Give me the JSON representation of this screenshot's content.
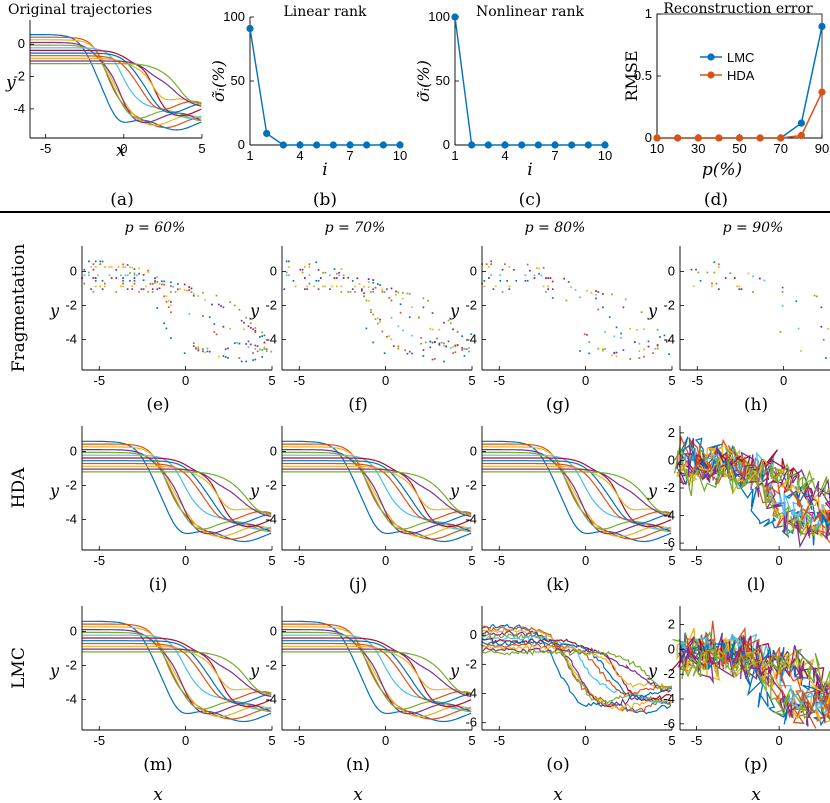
{
  "colors": {
    "blue": "#0072BD",
    "orange": "#D95319",
    "yellow": "#EDB120",
    "purple": "#7E2F8E",
    "green": "#77AC30",
    "cyan": "#4DBEEE",
    "red": "#A2142F"
  },
  "labels": {
    "x": "x",
    "y": "y",
    "i": "i",
    "p": "p(%)",
    "sigma": "σ̃ᵢ(%)",
    "rmse": "RMSE"
  },
  "row_labels": [
    "Fragmentation",
    "HDA",
    "LMC"
  ],
  "col_titles": [
    "p = 60%",
    "p = 70%",
    "p = 80%",
    "p = 90%"
  ],
  "panel_letters": [
    "(a)",
    "(b)",
    "(c)",
    "(d)",
    "(e)",
    "(f)",
    "(g)",
    "(h)",
    "(i)",
    "(j)",
    "(k)",
    "(l)",
    "(m)",
    "(n)",
    "(o)",
    "(p)"
  ],
  "chart_data": [
    {
      "type": "line",
      "title": "Original trajectories",
      "xlabel": "x",
      "ylabel": "y",
      "xlim": [
        -6,
        5
      ],
      "ylim": [
        -5.8,
        1.5
      ],
      "xticks": [
        "-5",
        "0",
        "5"
      ],
      "yticks": [
        "0",
        "-2",
        "-4"
      ],
      "series_count": 12
    },
    {
      "type": "line",
      "title": "Linear rank",
      "xlabel": "i",
      "ylabel": "σ̃ᵢ(%)",
      "xlim": [
        1,
        10
      ],
      "ylim": [
        0,
        100
      ],
      "xticks": [
        "1",
        "4",
        "7",
        "10"
      ],
      "yticks": [
        "0",
        "50",
        "100"
      ],
      "series": [
        {
          "name": "linear",
          "x": [
            1,
            2,
            3,
            4,
            5,
            6,
            7,
            8,
            9,
            10
          ],
          "values": [
            91,
            9,
            0,
            0,
            0,
            0,
            0,
            0,
            0,
            0
          ]
        }
      ]
    },
    {
      "type": "line",
      "title": "Nonlinear rank",
      "xlabel": "i",
      "ylabel": "σ̃ᵢ(%)",
      "xlim": [
        1,
        10
      ],
      "ylim": [
        0,
        100
      ],
      "xticks": [
        "1",
        "4",
        "7",
        "10"
      ],
      "yticks": [
        "0",
        "50",
        "100"
      ],
      "series": [
        {
          "name": "nonlinear",
          "x": [
            1,
            2,
            3,
            4,
            5,
            6,
            7,
            8,
            9,
            10
          ],
          "values": [
            100,
            0,
            0,
            0,
            0,
            0,
            0,
            0,
            0,
            0
          ]
        }
      ]
    },
    {
      "type": "line",
      "title": "Reconstruction error",
      "xlabel": "p(%)",
      "ylabel": "RMSE",
      "xlim": [
        10,
        90
      ],
      "ylim": [
        0,
        1
      ],
      "xticks": [
        "10",
        "30",
        "50",
        "70",
        "90"
      ],
      "yticks": [
        "0",
        "0.5",
        "1"
      ],
      "legend": "top-right",
      "series": [
        {
          "name": "LMC",
          "x": [
            10,
            20,
            30,
            40,
            50,
            60,
            70,
            80,
            90
          ],
          "values": [
            0,
            0,
            0,
            0,
            0,
            0,
            0,
            0.12,
            0.9
          ]
        },
        {
          "name": "HDA",
          "x": [
            10,
            20,
            30,
            40,
            50,
            60,
            70,
            80,
            90
          ],
          "values": [
            0,
            0,
            0,
            0,
            0,
            0,
            0,
            0.02,
            0.37
          ]
        }
      ]
    },
    {
      "type": "scatter",
      "row": "Fragmentation",
      "p": 60,
      "xlim": [
        -6,
        5
      ],
      "ylim": [
        -5.8,
        1.5
      ],
      "kept_fraction": 0.4
    },
    {
      "type": "scatter",
      "row": "Fragmentation",
      "p": 70,
      "xlim": [
        -6,
        5
      ],
      "ylim": [
        -5.8,
        1.5
      ],
      "kept_fraction": 0.3
    },
    {
      "type": "scatter",
      "row": "Fragmentation",
      "p": 80,
      "xlim": [
        -6,
        5
      ],
      "ylim": [
        -5.8,
        1.5
      ],
      "kept_fraction": 0.2
    },
    {
      "type": "scatter",
      "row": "Fragmentation",
      "p": 90,
      "xlim": [
        -6,
        5
      ],
      "ylim": [
        -5.8,
        1.5
      ],
      "kept_fraction": 0.1
    },
    {
      "type": "line",
      "row": "HDA",
      "p": 60,
      "xlim": [
        -6,
        5
      ],
      "ylim": [
        -5.8,
        1.5
      ],
      "noise": 0
    },
    {
      "type": "line",
      "row": "HDA",
      "p": 70,
      "xlim": [
        -6,
        5
      ],
      "ylim": [
        -5.8,
        1.5
      ],
      "noise": 0
    },
    {
      "type": "line",
      "row": "HDA",
      "p": 80,
      "xlim": [
        -6,
        5
      ],
      "ylim": [
        -5.8,
        1.5
      ],
      "noise": 0
    },
    {
      "type": "line",
      "row": "HDA",
      "p": 90,
      "xlim": [
        -6,
        5.5
      ],
      "ylim": [
        -6.5,
        2.5
      ],
      "noise": 1.0,
      "yticks": [
        "2",
        "0",
        "-2",
        "-4",
        "-6"
      ]
    },
    {
      "type": "line",
      "row": "LMC",
      "p": 60,
      "xlim": [
        -6,
        5
      ],
      "ylim": [
        -5.8,
        1.5
      ],
      "noise": 0
    },
    {
      "type": "line",
      "row": "LMC",
      "p": 70,
      "xlim": [
        -6,
        5
      ],
      "ylim": [
        -5.8,
        1.5
      ],
      "noise": 0
    },
    {
      "type": "line",
      "row": "LMC",
      "p": 80,
      "xlim": [
        -6,
        5
      ],
      "ylim": [
        -6.5,
        2
      ],
      "noise": 0.15,
      "yticks": [
        "0",
        "-2",
        "-4",
        "-6"
      ]
    },
    {
      "type": "line",
      "row": "LMC",
      "p": 90,
      "xlim": [
        -6,
        5.5
      ],
      "ylim": [
        -6.5,
        3.5
      ],
      "noise": 1.2,
      "yticks": [
        "2",
        "0",
        "-2",
        "-4",
        "-6"
      ]
    }
  ]
}
